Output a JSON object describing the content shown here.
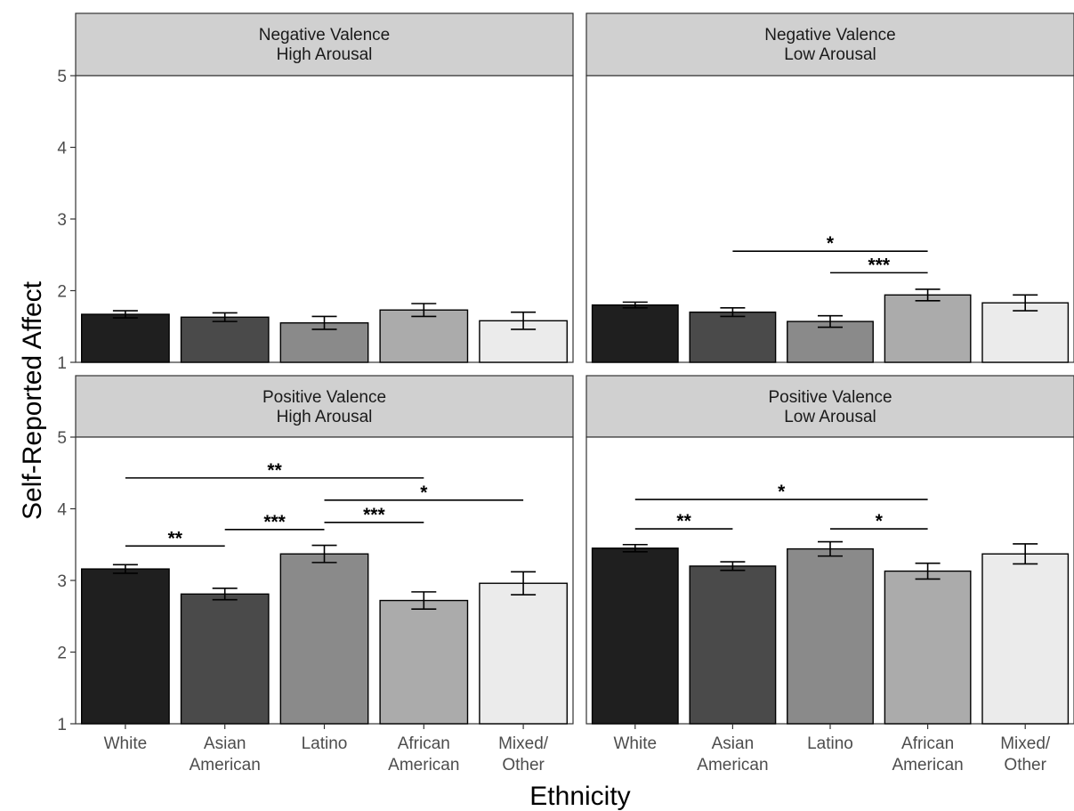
{
  "chart_data": {
    "type": "bar",
    "xlabel": "Ethnicity",
    "ylabel": "Self-Reported Affect",
    "ylim": [
      1,
      5.8
    ],
    "yticks": [
      1,
      2,
      3,
      4,
      5
    ],
    "categories": [
      [
        "White"
      ],
      [
        "Asian",
        "American"
      ],
      [
        "Latino"
      ],
      [
        "African",
        "American"
      ],
      [
        "Mixed/",
        "Other"
      ]
    ],
    "category_colors": [
      "#1f1f1f",
      "#4a4a4a",
      "#8a8a8a",
      "#ababab",
      "#ebebeb"
    ],
    "panels": [
      {
        "title": [
          "Negative Valence",
          "High Arousal"
        ],
        "values": [
          1.67,
          1.63,
          1.55,
          1.73,
          1.58
        ],
        "errors": [
          0.05,
          0.06,
          0.09,
          0.09,
          0.12
        ],
        "significance": []
      },
      {
        "title": [
          "Negative Valence",
          "Low Arousal"
        ],
        "values": [
          1.8,
          1.7,
          1.57,
          1.94,
          1.83
        ],
        "errors": [
          0.04,
          0.06,
          0.08,
          0.08,
          0.11
        ],
        "significance": [
          {
            "from": 1,
            "to": 3,
            "y": 2.55,
            "label": "*"
          },
          {
            "from": 2,
            "to": 3,
            "y": 2.25,
            "label": "***"
          }
        ]
      },
      {
        "title": [
          "Positive Valence",
          "High Arousal"
        ],
        "values": [
          3.16,
          2.81,
          3.37,
          2.72,
          2.96
        ],
        "errors": [
          0.06,
          0.08,
          0.12,
          0.12,
          0.16
        ],
        "significance": [
          {
            "from": 0,
            "to": 3,
            "y": 4.43,
            "label": "**"
          },
          {
            "from": 2,
            "to": 4,
            "y": 4.12,
            "label": "*"
          },
          {
            "from": 2,
            "to": 3,
            "y": 3.81,
            "label": "***"
          },
          {
            "from": 1,
            "to": 2,
            "y": 3.71,
            "label": "***"
          },
          {
            "from": 0,
            "to": 1,
            "y": 3.48,
            "label": "**"
          }
        ]
      },
      {
        "title": [
          "Positive Valence",
          "Low Arousal"
        ],
        "values": [
          3.45,
          3.2,
          3.44,
          3.13,
          3.37
        ],
        "errors": [
          0.05,
          0.06,
          0.1,
          0.11,
          0.14
        ],
        "significance": [
          {
            "from": 0,
            "to": 3,
            "y": 4.13,
            "label": "*"
          },
          {
            "from": 0,
            "to": 1,
            "y": 3.72,
            "label": "**"
          },
          {
            "from": 2,
            "to": 3,
            "y": 3.72,
            "label": "*"
          }
        ]
      }
    ]
  }
}
